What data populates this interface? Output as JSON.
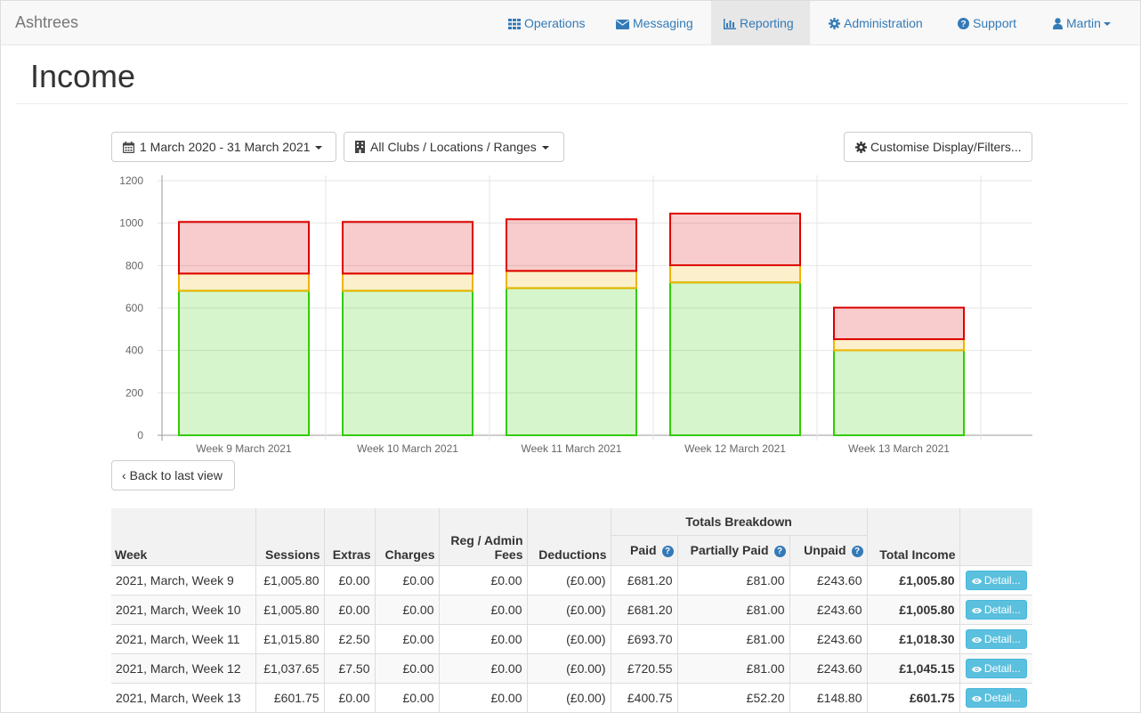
{
  "app": {
    "brand": "Ashtrees"
  },
  "nav": {
    "operations": "Operations",
    "messaging": "Messaging",
    "reporting": "Reporting",
    "administration": "Administration",
    "support": "Support",
    "user": "Martin"
  },
  "page": {
    "title": "Income"
  },
  "filters": {
    "date_range": "1 March 2020 - 31 March 2021",
    "locations": "All Clubs / Locations / Ranges",
    "customise": "Customise Display/Filters...",
    "back": "Back to last view"
  },
  "colors": {
    "paid": "#33cc00",
    "partially_paid": "#f0b400",
    "unpaid": "#dd0000"
  },
  "chart_data": {
    "type": "bar",
    "stacked": true,
    "categories": [
      "Week 9 March 2021",
      "Week 10 March 2021",
      "Week 11 March 2021",
      "Week 12 March 2021",
      "Week 13 March 2021"
    ],
    "series": [
      {
        "values": [
          681.2,
          681.2,
          693.7,
          720.55,
          400.75
        ],
        "color": "#33cc00"
      },
      {
        "values": [
          81.0,
          81.0,
          81.0,
          81.0,
          52.2
        ],
        "color": "#f0b400"
      },
      {
        "values": [
          243.6,
          243.6,
          243.6,
          243.6,
          148.8
        ],
        "color": "#dd0000"
      }
    ],
    "yticks": [
      "0",
      "200",
      "400",
      "600",
      "800",
      "1000",
      "1200"
    ],
    "ylim": [
      0,
      1200
    ],
    "grid": true
  },
  "table": {
    "headers": {
      "week": "Week",
      "sessions": "Sessions",
      "extras": "Extras",
      "charges": "Charges",
      "reg_admin": "Reg / Admin Fees",
      "deductions": "Deductions",
      "totals_breakdown": "Totals Breakdown",
      "paid": "Paid",
      "partially_paid": "Partially Paid",
      "unpaid": "Unpaid",
      "total_income": "Total Income"
    },
    "detail_label": "Detail...",
    "rows": [
      {
        "week": "2021, March, Week 9",
        "sessions": "£1,005.80",
        "extras": "£0.00",
        "charges": "£0.00",
        "reg": "£0.00",
        "deductions": "(£0.00)",
        "paid": "£681.20",
        "partial": "£81.00",
        "unpaid": "£243.60",
        "total": "£1,005.80"
      },
      {
        "week": "2021, March, Week 10",
        "sessions": "£1,005.80",
        "extras": "£0.00",
        "charges": "£0.00",
        "reg": "£0.00",
        "deductions": "(£0.00)",
        "paid": "£681.20",
        "partial": "£81.00",
        "unpaid": "£243.60",
        "total": "£1,005.80"
      },
      {
        "week": "2021, March, Week 11",
        "sessions": "£1,015.80",
        "extras": "£2.50",
        "charges": "£0.00",
        "reg": "£0.00",
        "deductions": "(£0.00)",
        "paid": "£693.70",
        "partial": "£81.00",
        "unpaid": "£243.60",
        "total": "£1,018.30"
      },
      {
        "week": "2021, March, Week 12",
        "sessions": "£1,037.65",
        "extras": "£7.50",
        "charges": "£0.00",
        "reg": "£0.00",
        "deductions": "(£0.00)",
        "paid": "£720.55",
        "partial": "£81.00",
        "unpaid": "£243.60",
        "total": "£1,045.15"
      },
      {
        "week": "2021, March, Week 13",
        "sessions": "£601.75",
        "extras": "£0.00",
        "charges": "£0.00",
        "reg": "£0.00",
        "deductions": "(£0.00)",
        "paid": "£400.75",
        "partial": "£52.20",
        "unpaid": "£148.80",
        "total": "£601.75"
      }
    ]
  }
}
